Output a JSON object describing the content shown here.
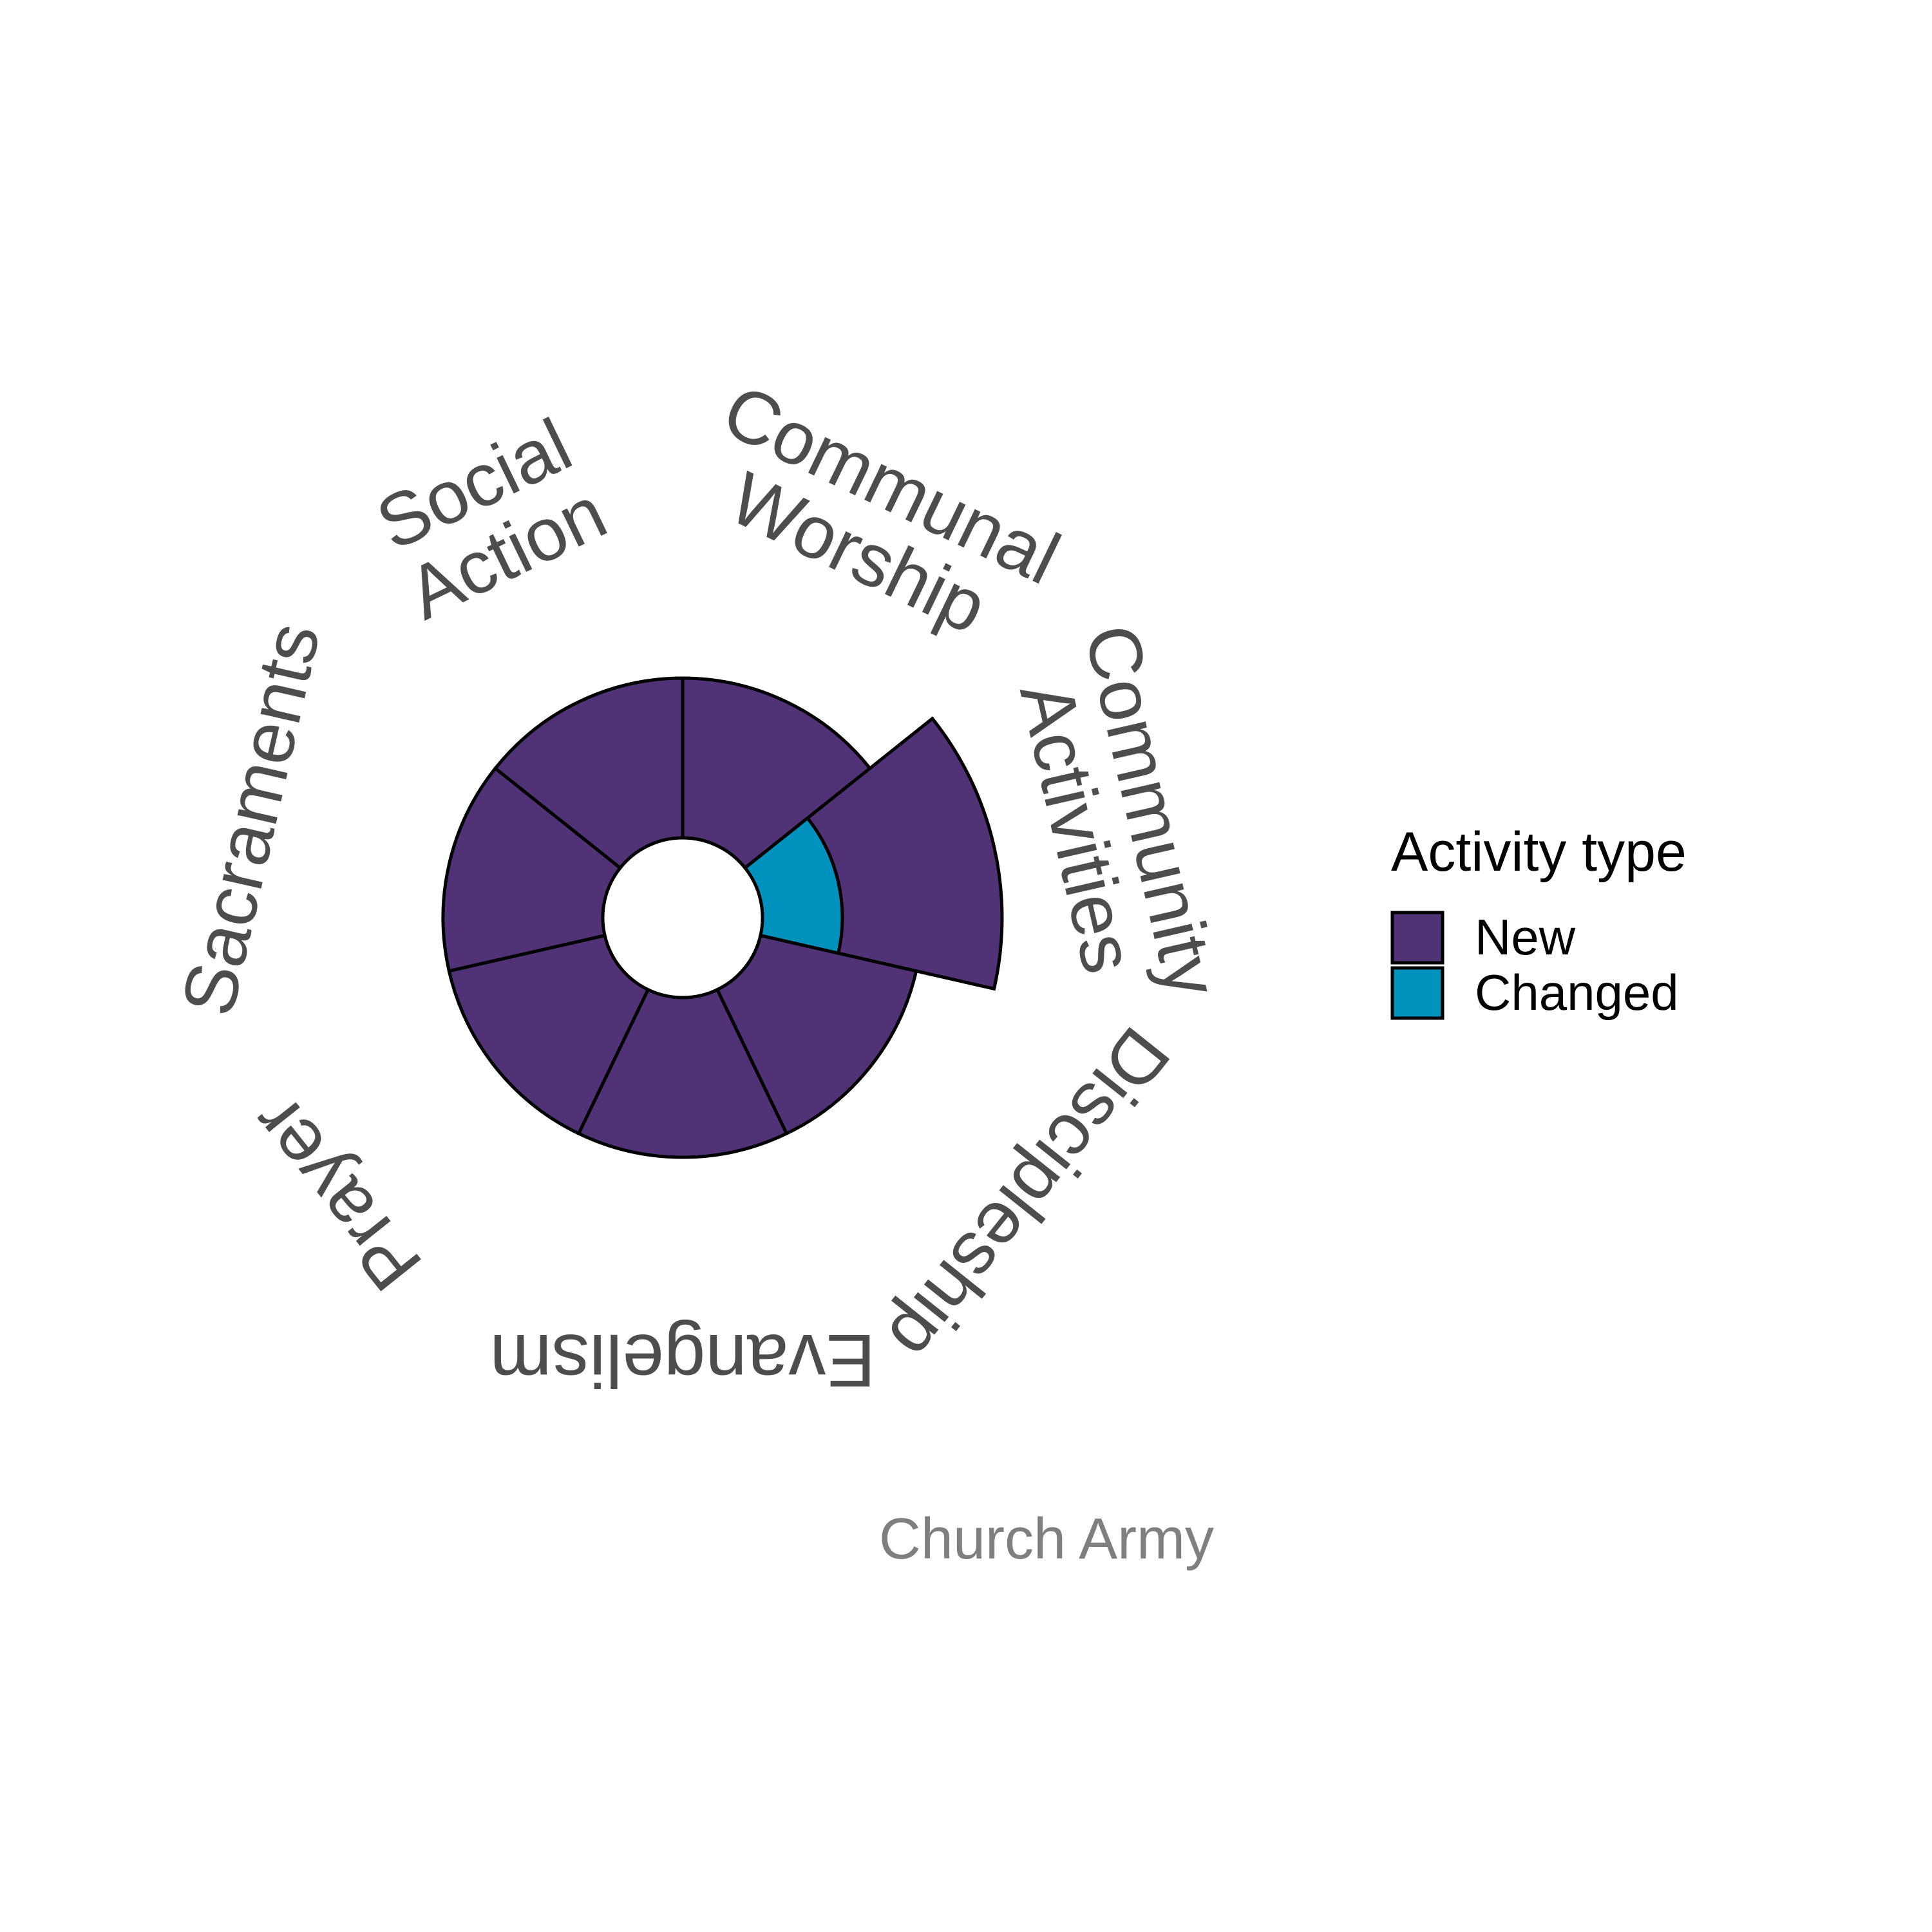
{
  "chart_data": {
    "type": "bar",
    "coord": "polar",
    "categories": [
      "Communal Worship",
      "Community Activities",
      "Discipleship",
      "Evangelism",
      "Prayer",
      "Sacraments",
      "Social Action"
    ],
    "series": [
      {
        "name": "New",
        "values": [
          2,
          2,
          2,
          2,
          2,
          2,
          2
        ]
      },
      {
        "name": "Changed",
        "values": [
          0,
          1,
          0,
          0,
          0,
          0,
          0
        ]
      }
    ],
    "stack_order": [
      "Changed",
      "New"
    ],
    "inner_hole": 1,
    "r_max": 4,
    "legend": {
      "title": "Activity type",
      "position": "right",
      "entries": [
        "New",
        "Changed"
      ]
    },
    "caption": "Church Army",
    "grid": false,
    "colors": {
      "New": "#513276",
      "Changed": "#0092bc",
      "outline": "#000000",
      "label": "#4d4d4d",
      "caption": "#7f7f7f"
    }
  }
}
